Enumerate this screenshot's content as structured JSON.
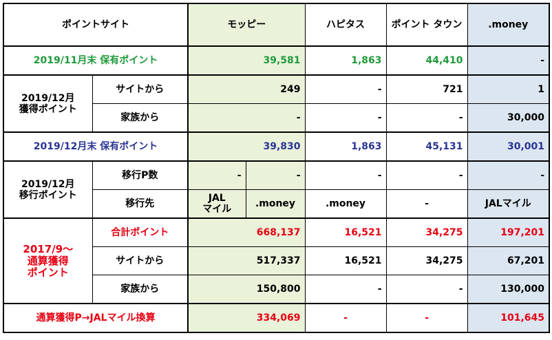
{
  "colors": {
    "green_text": "#1f9a3a",
    "blue_text": "#2a3593",
    "red_text": "#e60012",
    "moppy_fill": "#eaf2da",
    "money_fill": "#dce6f1"
  },
  "header": {
    "site": "ポイントサイト",
    "moppy": "モッピー",
    "hapitas": "ハピタス",
    "pointtown": "ポイント\nタウン",
    "money": ".money"
  },
  "nov_end": {
    "label": "2019/11月末 保有ポイント",
    "moppy": "39,581",
    "hapitas": "1,863",
    "pointtown": "44,410",
    "money": "-"
  },
  "dec_earned": {
    "group": "2019/12月\n獲得ポイント",
    "site_label": "サイトから",
    "site": {
      "moppy": "249",
      "hapitas": "-",
      "pointtown": "721",
      "money": "1"
    },
    "family_label": "家族から",
    "family": {
      "moppy": "-",
      "hapitas": "-",
      "pointtown": "-",
      "money": "30,000"
    }
  },
  "dec_end": {
    "label": "2019/12月末 保有ポイント",
    "moppy": "39,830",
    "hapitas": "1,863",
    "pointtown": "45,131",
    "money": "30,001"
  },
  "dec_transfer": {
    "group": "2019/12月\n移行ポイント",
    "count_label": "移行P数",
    "count": {
      "moppy_a": "-",
      "moppy_b": "-",
      "hapitas": "-",
      "pointtown": "-",
      "money": "-"
    },
    "dest_label": "移行先",
    "dest": {
      "moppy_a": "JAL\nマイル",
      "moppy_b": ".money",
      "hapitas": ".money",
      "pointtown": "-",
      "money": "JALマイル"
    }
  },
  "cumulative": {
    "group": "2017/9～\n通算獲得\nポイント",
    "total_label": "合計ポイント",
    "total": {
      "moppy": "668,137",
      "hapitas": "16,521",
      "pointtown": "34,275",
      "money": "197,201"
    },
    "site_label": "サイトから",
    "site": {
      "moppy": "517,337",
      "hapitas": "16,521",
      "pointtown": "34,275",
      "money": "67,201"
    },
    "family_label": "家族から",
    "family": {
      "moppy": "150,800",
      "hapitas": "-",
      "pointtown": "-",
      "money": "130,000"
    }
  },
  "jal_conv": {
    "label": "通算獲得P→JALマイル換算",
    "moppy": "334,069",
    "hapitas": "-",
    "pointtown": "-",
    "money": "101,645"
  }
}
